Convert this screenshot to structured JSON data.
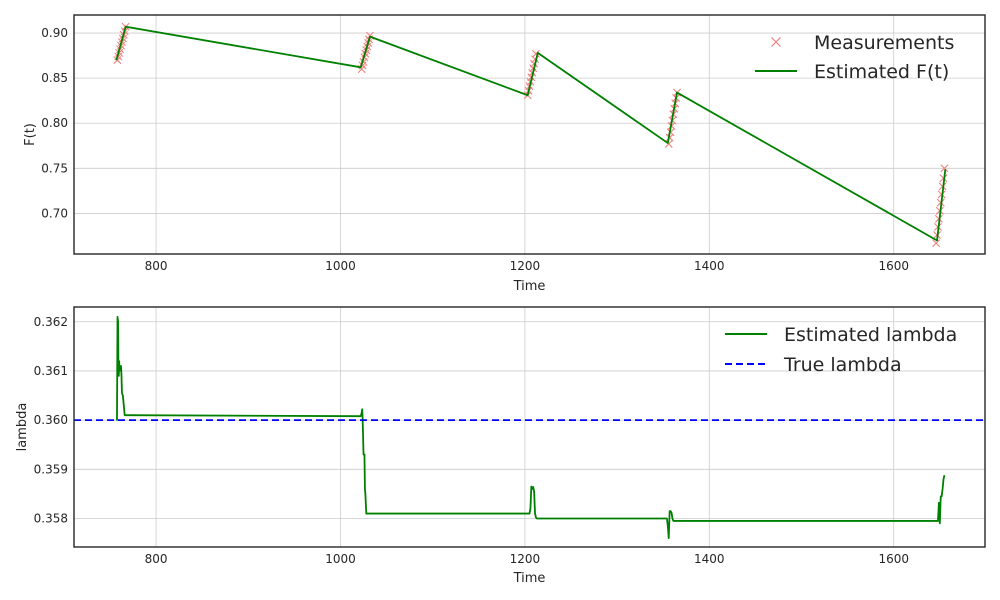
{
  "chart_data": [
    {
      "type": "line",
      "xlabel": "Time",
      "ylabel": "F(t)",
      "xlim": [
        711,
        1699
      ],
      "ylim": [
        0.655,
        0.92
      ],
      "xticks": [
        800,
        1000,
        1200,
        1400,
        1600
      ],
      "xtick_labels": [
        "800",
        "1000",
        "1200",
        "1400",
        "1600"
      ],
      "yticks": [
        0.7,
        0.75,
        0.8,
        0.85,
        0.9
      ],
      "ytick_labels": [
        "0.70",
        "0.75",
        "0.80",
        "0.85",
        "0.90"
      ],
      "grid": true,
      "legend_position": "top-right",
      "series": [
        {
          "name": "Measurements",
          "style": "x-markers",
          "color": "#f08080",
          "x": [
            758,
            759,
            760,
            761,
            762,
            763,
            764,
            765,
            766,
            767,
            1023,
            1024,
            1025,
            1026,
            1027,
            1028,
            1029,
            1030,
            1031,
            1032,
            1203,
            1204,
            1205,
            1206,
            1207,
            1208,
            1209,
            1210,
            1211,
            1212,
            1356,
            1357,
            1358,
            1359,
            1360,
            1361,
            1362,
            1363,
            1364,
            1365,
            1646,
            1647,
            1648,
            1649,
            1650,
            1651,
            1652,
            1653,
            1654,
            1655
          ],
          "y": [
            0.87,
            0.874,
            0.878,
            0.882,
            0.886,
            0.89,
            0.894,
            0.898,
            0.902,
            0.907,
            0.86,
            0.864,
            0.868,
            0.873,
            0.877,
            0.881,
            0.885,
            0.889,
            0.893,
            0.897,
            0.831,
            0.836,
            0.841,
            0.846,
            0.851,
            0.856,
            0.861,
            0.866,
            0.871,
            0.877,
            0.777,
            0.784,
            0.79,
            0.797,
            0.803,
            0.81,
            0.816,
            0.822,
            0.828,
            0.834,
            0.667,
            0.676,
            0.685,
            0.694,
            0.703,
            0.712,
            0.721,
            0.73,
            0.739,
            0.75
          ]
        },
        {
          "name": "Estimated F(t)",
          "style": "line",
          "color": "#008000",
          "x": [
            757,
            767,
            1022,
            1032,
            1203,
            1214,
            1355,
            1365,
            1647,
            1656
          ],
          "y": [
            0.87,
            0.907,
            0.862,
            0.896,
            0.831,
            0.878,
            0.778,
            0.834,
            0.67,
            0.749
          ]
        }
      ]
    },
    {
      "type": "line",
      "xlabel": "Time",
      "ylabel": "lambda",
      "xlim": [
        711,
        1699
      ],
      "ylim": [
        0.35742,
        0.3623
      ],
      "xticks": [
        800,
        1000,
        1200,
        1400,
        1600
      ],
      "xtick_labels": [
        "800",
        "1000",
        "1200",
        "1400",
        "1600"
      ],
      "yticks": [
        0.358,
        0.359,
        0.36,
        0.361,
        0.362
      ],
      "ytick_labels": [
        "0.358",
        "0.359",
        "0.360",
        "0.361",
        "0.362"
      ],
      "grid": true,
      "legend_position": "top-right",
      "series": [
        {
          "name": "Estimated lambda",
          "style": "line",
          "color": "#008000",
          "x": [
            757,
            757.6,
            758.2,
            758.8,
            759.2,
            759.6,
            760.0,
            760.4,
            761.0,
            762.0,
            762.5,
            763.0,
            764.0,
            765.0,
            766.0,
            767.0,
            768.0,
            770,
            1022,
            1023,
            1023.6,
            1024,
            1025,
            1026,
            1026.5,
            1027,
            1028,
            1029,
            1031,
            1205,
            1206,
            1207,
            1208,
            1209,
            1210,
            1211,
            1212,
            1213,
            1214,
            1354,
            1355,
            1356,
            1357,
            1358,
            1359,
            1360,
            1361,
            1362,
            1363,
            1364,
            1646,
            1647,
            1648,
            1649,
            1650,
            1651,
            1652,
            1653,
            1654,
            1655
          ],
          "y": [
            0.36,
            0.36,
            0.3621,
            0.362,
            0.361,
            0.3609,
            0.3612,
            0.361,
            0.3611,
            0.3611,
            0.3609,
            0.36055,
            0.3605,
            0.3603,
            0.3601,
            0.3601,
            0.3601,
            0.3601,
            0.36008,
            0.36015,
            0.36022,
            0.36005,
            0.3593,
            0.3593,
            0.3586,
            0.3585,
            0.3581,
            0.3581,
            0.3581,
            0.3581,
            0.3582,
            0.35865,
            0.3586,
            0.35864,
            0.35855,
            0.3581,
            0.35802,
            0.358,
            0.358,
            0.358,
            0.35785,
            0.3576,
            0.35815,
            0.35815,
            0.35812,
            0.358,
            0.35795,
            0.35795,
            0.35795,
            0.35795,
            0.35795,
            0.35795,
            0.35795,
            0.35832,
            0.3579,
            0.35845,
            0.35845,
            0.3586,
            0.3588,
            0.35888
          ]
        },
        {
          "name": "True lambda",
          "style": "dashed",
          "color": "#0000ff",
          "x": [
            711,
            1699
          ],
          "y": [
            0.36,
            0.36
          ]
        }
      ]
    }
  ]
}
